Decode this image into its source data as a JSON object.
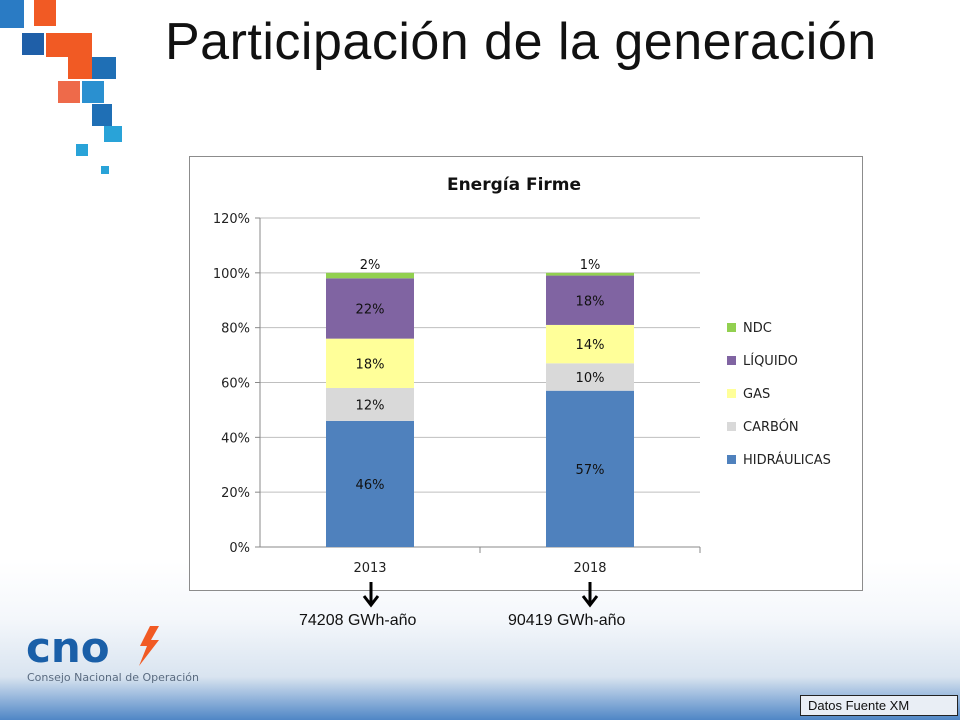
{
  "slide": {
    "title": "Participación de la generación",
    "logo_text": "cno",
    "logo_subtitle": "Consejo Nacional de Operación",
    "source_note": "Datos Fuente XM",
    "annotations": [
      {
        "category": "2013",
        "text": "74208 GWh-año"
      },
      {
        "category": "2018",
        "text": "90419  GWh-año"
      }
    ],
    "colors": {
      "logo_blue": "#1a5fa8",
      "logo_orange": "#f15a24",
      "deco_blue": "#1f6fb5",
      "deco_cyan": "#29a3d8",
      "deco_orange": "#f15a24"
    }
  },
  "chart_data": {
    "type": "bar",
    "stacked": true,
    "title": "Energía Firme",
    "xlabel": "",
    "ylabel": "",
    "categories": [
      "2013",
      "2018"
    ],
    "ylim": [
      0,
      120
    ],
    "yticks": [
      "0%",
      "20%",
      "40%",
      "60%",
      "80%",
      "100%",
      "120%"
    ],
    "grid": true,
    "legend_position": "right",
    "series": [
      {
        "name": "HIDRÁULICAS",
        "values": [
          46,
          57
        ],
        "labels": [
          "46%",
          "57%"
        ],
        "color": "#4f81bd"
      },
      {
        "name": "CARBÓN",
        "values": [
          12,
          10
        ],
        "labels": [
          "12%",
          "10%"
        ],
        "color": "#d9d9d9"
      },
      {
        "name": "GAS",
        "values": [
          18,
          14
        ],
        "labels": [
          "18%",
          "14%"
        ],
        "color": "#ffff99"
      },
      {
        "name": "LÍQUIDO",
        "values": [
          22,
          18
        ],
        "labels": [
          "22%",
          "18%"
        ],
        "color": "#8064a2"
      },
      {
        "name": "NDC",
        "values": [
          2,
          1
        ],
        "labels": [
          "2%",
          "1%"
        ],
        "color": "#92d050"
      }
    ]
  }
}
